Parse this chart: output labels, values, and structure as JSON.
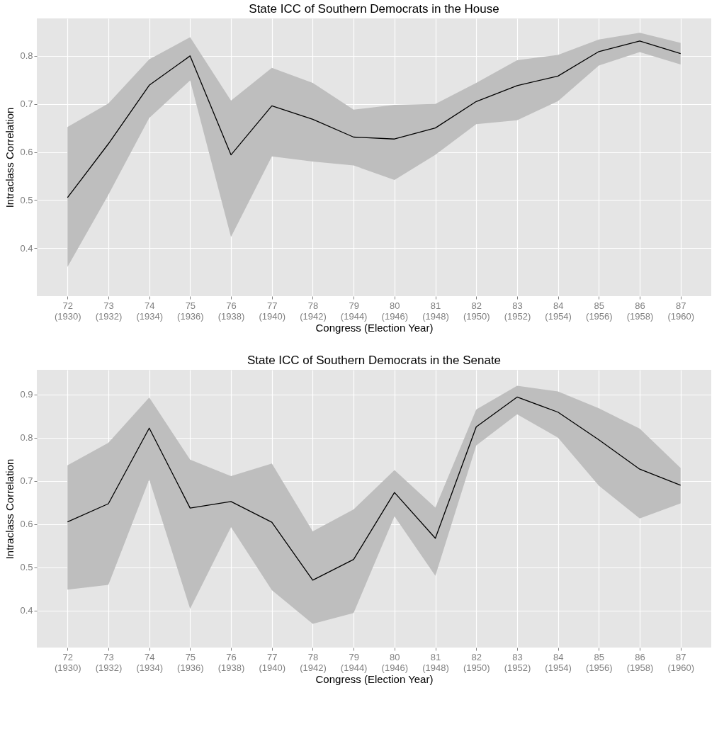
{
  "chart_data": [
    {
      "type": "line",
      "title": "State ICC of Southern Democrats in the House",
      "xlabel": "Congress (Election Year)",
      "ylabel": "Intraclass Correlation",
      "categories": [
        "72\n(1930)",
        "73\n(1932)",
        "74\n(1934)",
        "75\n(1936)",
        "76\n(1938)",
        "77\n(1940)",
        "78\n(1942)",
        "79\n(1944)",
        "80\n(1946)",
        "81\n(1948)",
        "82\n(1950)",
        "83\n(1952)",
        "84\n(1954)",
        "85\n(1956)",
        "86\n(1958)",
        "87\n(1960)"
      ],
      "series": [
        {
          "color": "#000000",
          "values": [
            0.505,
            0.617,
            0.739,
            0.8,
            0.594,
            0.696,
            0.668,
            0.631,
            0.627,
            0.65,
            0.705,
            0.738,
            0.758,
            0.809,
            0.831,
            0.805
          ],
          "lower": [
            0.361,
            0.511,
            0.671,
            0.749,
            0.423,
            0.591,
            0.58,
            0.572,
            0.542,
            0.594,
            0.658,
            0.666,
            0.706,
            0.78,
            0.808,
            0.782
          ],
          "upper": [
            0.652,
            0.701,
            0.793,
            0.839,
            0.707,
            0.775,
            0.744,
            0.688,
            0.698,
            0.7,
            0.744,
            0.791,
            0.802,
            0.834,
            0.848,
            0.827
          ]
        }
      ],
      "ylim": [
        0.3,
        0.878
      ],
      "yticks": [
        0.4,
        0.5,
        0.6,
        0.7,
        0.8
      ],
      "grid": true
    },
    {
      "type": "line",
      "title": "State ICC of Southern Democrats in the Senate",
      "xlabel": "Congress (Election Year)",
      "ylabel": "Intraclass Correlation",
      "categories": [
        "72\n(1930)",
        "73\n(1932)",
        "74\n(1934)",
        "75\n(1936)",
        "76\n(1938)",
        "77\n(1940)",
        "78\n(1942)",
        "79\n(1944)",
        "80\n(1946)",
        "81\n(1948)",
        "82\n(1950)",
        "83\n(1952)",
        "84\n(1954)",
        "85\n(1956)",
        "86\n(1958)",
        "87\n(1960)"
      ],
      "series": [
        {
          "color": "#000000",
          "values": [
            0.605,
            0.647,
            0.822,
            0.637,
            0.652,
            0.604,
            0.47,
            0.518,
            0.673,
            0.567,
            0.825,
            0.894,
            0.859,
            0.795,
            0.727,
            0.69
          ],
          "lower": [
            0.448,
            0.459,
            0.703,
            0.404,
            0.593,
            0.447,
            0.369,
            0.394,
            0.618,
            0.48,
            0.782,
            0.854,
            0.8,
            0.689,
            0.613,
            0.648
          ],
          "upper": [
            0.736,
            0.788,
            0.893,
            0.749,
            0.711,
            0.74,
            0.583,
            0.634,
            0.725,
            0.638,
            0.865,
            0.92,
            0.907,
            0.868,
            0.821,
            0.73
          ]
        }
      ],
      "ylim": [
        0.314,
        0.957
      ],
      "yticks": [
        0.4,
        0.5,
        0.6,
        0.7,
        0.8,
        0.9
      ],
      "grid": true
    }
  ]
}
